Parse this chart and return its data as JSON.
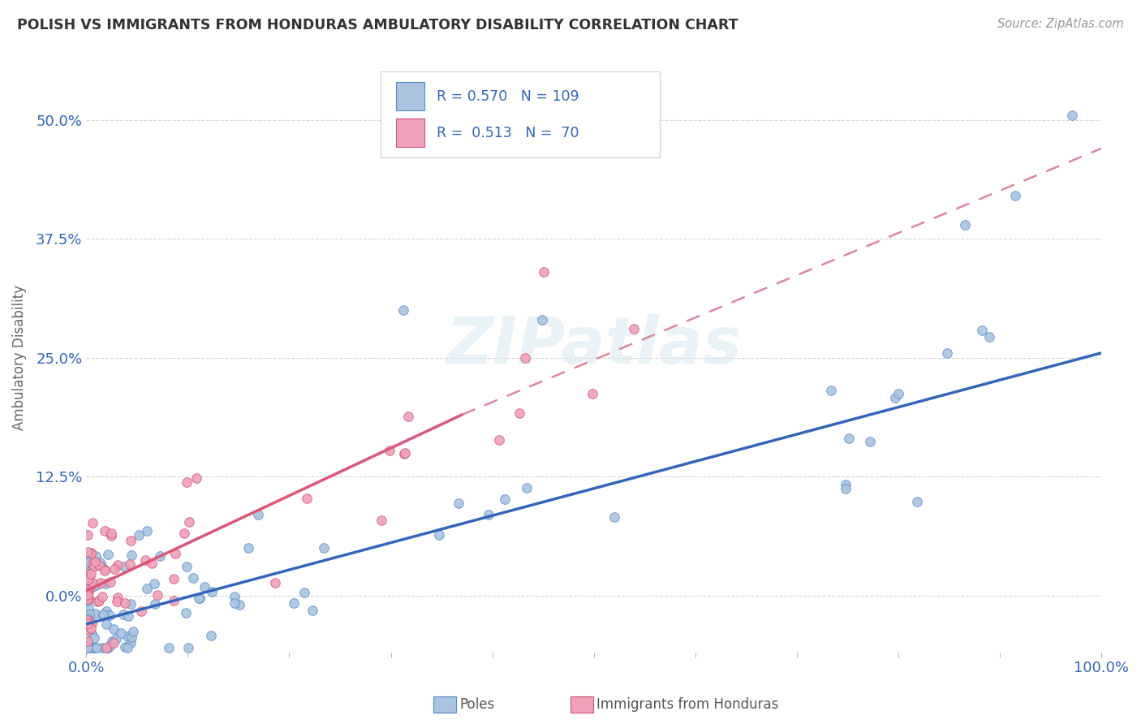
{
  "title": "POLISH VS IMMIGRANTS FROM HONDURAS AMBULATORY DISABILITY CORRELATION CHART",
  "source_text": "Source: ZipAtlas.com",
  "ylabel": "Ambulatory Disability",
  "color_poles": "#aac4e0",
  "color_poles_edge": "#5588cc",
  "color_honduras": "#f0a0b8",
  "color_honduras_edge": "#cc5577",
  "color_poles_line": "#3366bb",
  "color_honduras_line_solid": "#dd5577",
  "color_honduras_line_dash": "#dd8899",
  "color_legend_text": "#3366bb",
  "color_axis_text": "#3366bb",
  "watermark_text": "ZIPatlas",
  "background_color": "#ffffff",
  "grid_color": "#cccccc",
  "title_color": "#333333",
  "legend_r1": "R = 0.570",
  "legend_n1": "N = 109",
  "legend_r2": "R =  0.513",
  "legend_n2": "N =  70",
  "poles_line": {
    "x0": 0.0,
    "x1": 1.0,
    "y0": -0.03,
    "y1": 0.255
  },
  "honduras_solid_line": {
    "x0": 0.0,
    "x1": 0.37,
    "y0": 0.005,
    "y1": 0.19
  },
  "honduras_dash_line": {
    "x0": 0.37,
    "x1": 1.0,
    "y0": 0.19,
    "y1": 0.47
  },
  "xlim": [
    0.0,
    1.0
  ],
  "ylim": [
    -0.06,
    0.56
  ],
  "ytick_vals": [
    0.0,
    0.125,
    0.25,
    0.375,
    0.5
  ],
  "ytick_labels": [
    "0.0%",
    "12.5%",
    "25.0%",
    "37.5%",
    "50.0%"
  ]
}
